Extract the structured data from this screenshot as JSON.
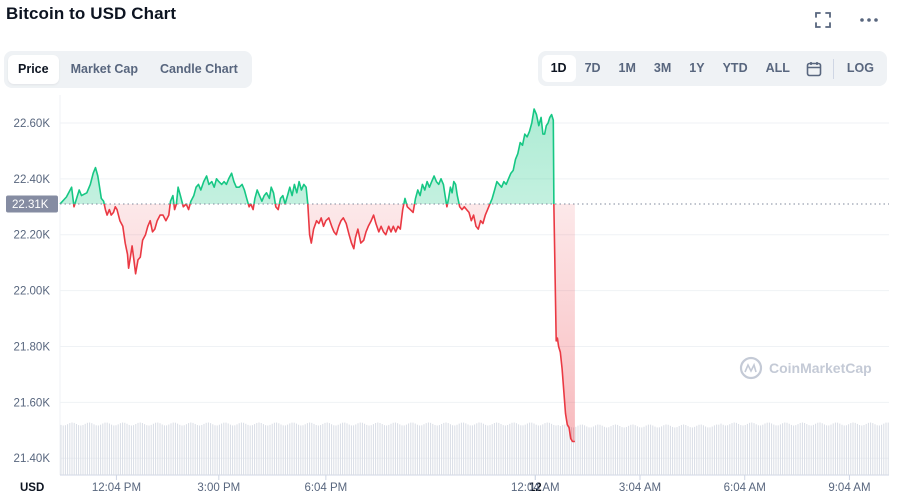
{
  "header": {
    "title": "Bitcoin to USD Chart"
  },
  "top_icons": [
    "fullscreen-icon",
    "more-icon"
  ],
  "view_tabs": [
    {
      "label": "Price",
      "active": true
    },
    {
      "label": "Market Cap",
      "active": false
    },
    {
      "label": "Candle Chart",
      "active": false
    }
  ],
  "ranges": [
    {
      "label": "1D",
      "active": true
    },
    {
      "label": "7D",
      "active": false
    },
    {
      "label": "1M",
      "active": false
    },
    {
      "label": "3M",
      "active": false
    },
    {
      "label": "1Y",
      "active": false
    },
    {
      "label": "YTD",
      "active": false
    },
    {
      "label": "ALL",
      "active": false
    }
  ],
  "log_label": "LOG",
  "watermark": "CoinMarketCap",
  "colors": {
    "up": "#16c784",
    "down": "#ea3943",
    "grid": "#eff2f5",
    "ref_badge": "#858ca2"
  },
  "chart_data": {
    "type": "area",
    "currency_label": "USD",
    "reference_value": 22310,
    "reference_label": "22.31K",
    "ylim": [
      21340,
      22700
    ],
    "yticks": [
      {
        "v": 22600,
        "label": "22.60K"
      },
      {
        "v": 22400,
        "label": "22.40K"
      },
      {
        "v": 22200,
        "label": "22.20K"
      },
      {
        "v": 22000,
        "label": "22.00K"
      },
      {
        "v": 21800,
        "label": "21.80K"
      },
      {
        "v": 21600,
        "label": "21.60K"
      },
      {
        "v": 21400,
        "label": "21.40K"
      }
    ],
    "xticks": [
      {
        "label": "12:04 PM",
        "t": 60,
        "bold": false
      },
      {
        "label": "3:00 PM",
        "t": 236,
        "bold": false
      },
      {
        "label": "6:04 PM",
        "t": 420,
        "bold": false
      },
      {
        "label": "12",
        "t": 780,
        "bold": true
      },
      {
        "label": "12:04 AM",
        "t": 780,
        "bold": false
      },
      {
        "label": "3:04 AM",
        "t": 960,
        "bold": false
      },
      {
        "label": "6:04 AM",
        "t": 1140,
        "bold": false
      },
      {
        "label": "9:04 AM",
        "t": 1320,
        "bold": false
      }
    ],
    "t_range": [
      -37,
      1388
    ],
    "series": [
      {
        "values": [
          [
            -37,
            22310
          ],
          [
            -26,
            22335
          ],
          [
            -17,
            22370
          ],
          [
            -13,
            22300
          ],
          [
            -4,
            22360
          ],
          [
            0,
            22340
          ],
          [
            9,
            22350
          ],
          [
            15,
            22380
          ],
          [
            20,
            22420
          ],
          [
            24,
            22440
          ],
          [
            28,
            22410
          ],
          [
            31,
            22370
          ],
          [
            34,
            22330
          ],
          [
            38,
            22320
          ],
          [
            41,
            22290
          ],
          [
            44,
            22270
          ],
          [
            48,
            22290
          ],
          [
            51,
            22270
          ],
          [
            55,
            22280
          ],
          [
            58,
            22300
          ],
          [
            61,
            22290
          ],
          [
            66,
            22250
          ],
          [
            71,
            22230
          ],
          [
            75,
            22170
          ],
          [
            79,
            22130
          ],
          [
            81,
            22080
          ],
          [
            84,
            22120
          ],
          [
            87,
            22160
          ],
          [
            90,
            22110
          ],
          [
            93,
            22060
          ],
          [
            97,
            22110
          ],
          [
            101,
            22120
          ],
          [
            105,
            22180
          ],
          [
            110,
            22200
          ],
          [
            114,
            22230
          ],
          [
            118,
            22250
          ],
          [
            122,
            22210
          ],
          [
            126,
            22220
          ],
          [
            130,
            22250
          ],
          [
            135,
            22270
          ],
          [
            140,
            22270
          ],
          [
            145,
            22250
          ],
          [
            150,
            22270
          ],
          [
            153,
            22320
          ],
          [
            157,
            22340
          ],
          [
            160,
            22290
          ],
          [
            163,
            22310
          ],
          [
            166,
            22370
          ],
          [
            170,
            22340
          ],
          [
            175,
            22300
          ],
          [
            180,
            22310
          ],
          [
            184,
            22290
          ],
          [
            188,
            22320
          ],
          [
            193,
            22340
          ],
          [
            197,
            22370
          ],
          [
            201,
            22380
          ],
          [
            205,
            22360
          ],
          [
            210,
            22390
          ],
          [
            215,
            22410
          ],
          [
            219,
            22380
          ],
          [
            224,
            22390
          ],
          [
            228,
            22370
          ],
          [
            232,
            22400
          ],
          [
            236,
            22390
          ],
          [
            241,
            22380
          ],
          [
            245,
            22390
          ],
          [
            249,
            22380
          ],
          [
            253,
            22400
          ],
          [
            258,
            22420
          ],
          [
            262,
            22390
          ],
          [
            266,
            22370
          ],
          [
            271,
            22370
          ],
          [
            276,
            22380
          ],
          [
            280,
            22360
          ],
          [
            284,
            22330
          ],
          [
            288,
            22300
          ],
          [
            291,
            22310
          ],
          [
            295,
            22290
          ],
          [
            298,
            22330
          ],
          [
            302,
            22360
          ],
          [
            306,
            22340
          ],
          [
            310,
            22320
          ],
          [
            314,
            22340
          ],
          [
            318,
            22350
          ],
          [
            323,
            22330
          ],
          [
            326,
            22370
          ],
          [
            330,
            22350
          ],
          [
            334,
            22300
          ],
          [
            338,
            22290
          ],
          [
            342,
            22330
          ],
          [
            346,
            22340
          ],
          [
            350,
            22310
          ],
          [
            354,
            22340
          ],
          [
            358,
            22370
          ],
          [
            362,
            22340
          ],
          [
            366,
            22380
          ],
          [
            370,
            22350
          ],
          [
            374,
            22390
          ],
          [
            378,
            22360
          ],
          [
            382,
            22380
          ],
          [
            386,
            22370
          ],
          [
            389,
            22310
          ],
          [
            392,
            22200
          ],
          [
            395,
            22170
          ],
          [
            399,
            22220
          ],
          [
            404,
            22250
          ],
          [
            408,
            22240
          ],
          [
            412,
            22260
          ],
          [
            416,
            22230
          ],
          [
            420,
            22250
          ],
          [
            425,
            22260
          ],
          [
            430,
            22230
          ],
          [
            434,
            22210
          ],
          [
            438,
            22200
          ],
          [
            442,
            22230
          ],
          [
            446,
            22250
          ],
          [
            450,
            22260
          ],
          [
            455,
            22240
          ],
          [
            460,
            22200
          ],
          [
            464,
            22170
          ],
          [
            468,
            22150
          ],
          [
            471,
            22190
          ],
          [
            475,
            22220
          ],
          [
            480,
            22170
          ],
          [
            485,
            22180
          ],
          [
            489,
            22210
          ],
          [
            493,
            22230
          ],
          [
            498,
            22250
          ],
          [
            502,
            22270
          ],
          [
            506,
            22240
          ],
          [
            511,
            22210
          ],
          [
            515,
            22230
          ],
          [
            519,
            22210
          ],
          [
            523,
            22200
          ],
          [
            528,
            22230
          ],
          [
            532,
            22210
          ],
          [
            536,
            22230
          ],
          [
            540,
            22210
          ],
          [
            544,
            22230
          ],
          [
            548,
            22220
          ],
          [
            552,
            22290
          ],
          [
            556,
            22330
          ],
          [
            560,
            22300
          ],
          [
            565,
            22290
          ],
          [
            570,
            22280
          ],
          [
            574,
            22330
          ],
          [
            578,
            22360
          ],
          [
            582,
            22340
          ],
          [
            586,
            22380
          ],
          [
            590,
            22360
          ],
          [
            594,
            22390
          ],
          [
            598,
            22370
          ],
          [
            602,
            22390
          ],
          [
            606,
            22410
          ],
          [
            610,
            22390
          ],
          [
            614,
            22380
          ],
          [
            618,
            22400
          ],
          [
            622,
            22380
          ],
          [
            625,
            22340
          ],
          [
            628,
            22300
          ],
          [
            631,
            22330
          ],
          [
            634,
            22370
          ],
          [
            637,
            22350
          ],
          [
            640,
            22390
          ],
          [
            643,
            22380
          ],
          [
            646,
            22340
          ],
          [
            650,
            22300
          ],
          [
            654,
            22290
          ],
          [
            658,
            22300
          ],
          [
            662,
            22290
          ],
          [
            666,
            22280
          ],
          [
            670,
            22250
          ],
          [
            674,
            22270
          ],
          [
            678,
            22230
          ],
          [
            682,
            22220
          ],
          [
            686,
            22250
          ],
          [
            690,
            22240
          ],
          [
            694,
            22270
          ],
          [
            698,
            22290
          ],
          [
            702,
            22310
          ],
          [
            706,
            22330
          ],
          [
            710,
            22360
          ],
          [
            714,
            22390
          ],
          [
            718,
            22380
          ],
          [
            722,
            22370
          ],
          [
            726,
            22390
          ],
          [
            730,
            22380
          ],
          [
            734,
            22400
          ],
          [
            738,
            22420
          ],
          [
            742,
            22430
          ],
          [
            746,
            22470
          ],
          [
            750,
            22490
          ],
          [
            754,
            22530
          ],
          [
            758,
            22520
          ],
          [
            762,
            22560
          ],
          [
            766,
            22550
          ],
          [
            770,
            22570
          ],
          [
            774,
            22600
          ],
          [
            778,
            22650
          ],
          [
            782,
            22630
          ],
          [
            786,
            22590
          ],
          [
            790,
            22620
          ],
          [
            793,
            22560
          ],
          [
            796,
            22560
          ],
          [
            799,
            22590
          ],
          [
            802,
            22600
          ],
          [
            805,
            22620
          ],
          [
            808,
            22630
          ],
          [
            811,
            22610
          ],
          [
            812,
            22300
          ],
          [
            814,
            22050
          ],
          [
            816,
            21820
          ],
          [
            818,
            21830
          ],
          [
            820,
            21800
          ],
          [
            823,
            21780
          ],
          [
            826,
            21720
          ],
          [
            829,
            21640
          ],
          [
            832,
            21560
          ],
          [
            835,
            21520
          ],
          [
            838,
            21510
          ],
          [
            841,
            21470
          ],
          [
            844,
            21460
          ],
          [
            848,
            21460
          ]
        ]
      }
    ]
  }
}
